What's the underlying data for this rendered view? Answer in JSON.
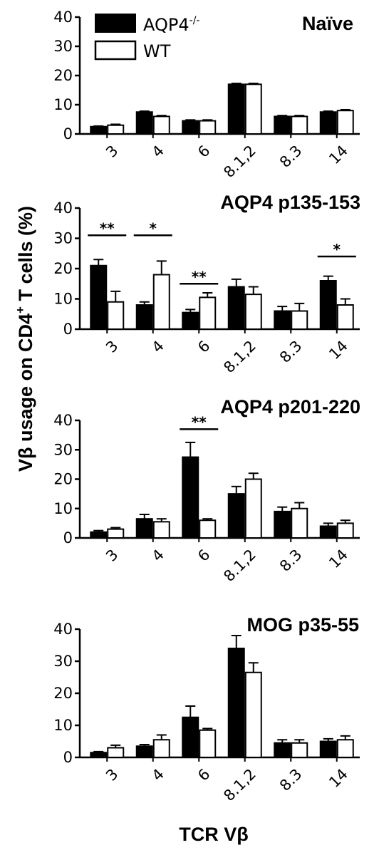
{
  "chart_data": {
    "type": "bar",
    "ylabel": "Vβ usage on CD4",
    "ylabel_sup": "+",
    "ylabel_tail": " T cells (%)",
    "xlabel": "TCR Vβ",
    "legend": {
      "placement": "top-left",
      "entries": [
        {
          "label": "AQP4",
          "sup": "-/-",
          "fill": "#000000"
        },
        {
          "label": "WT",
          "sup": "",
          "fill": "#ffffff"
        }
      ]
    },
    "series_colors": {
      "AQP4-/-": "#000000",
      "WT": "#ffffff"
    },
    "panels": [
      {
        "title": "Naïve",
        "categories": [
          "3",
          "4",
          "6",
          "8.1,2",
          "8.3",
          "14"
        ],
        "ylim": [
          0,
          40
        ],
        "yticks": [
          "0",
          "10",
          "20",
          "30",
          "40"
        ],
        "series": [
          {
            "name": "AQP4-/-",
            "values": [
              2.5,
              7.5,
              4.5,
              17,
              6,
              7.5
            ],
            "errors": [
              0.2,
              0.3,
              0.3,
              0.3,
              0.3,
              0.3
            ]
          },
          {
            "name": "WT",
            "values": [
              3,
              6,
              4.5,
              17,
              6,
              8
            ],
            "errors": [
              0.3,
              0.3,
              0.3,
              0.3,
              0.3,
              0.3
            ]
          }
        ],
        "significance": []
      },
      {
        "title": "AQP4 p135-153",
        "categories": [
          "3",
          "4",
          "6",
          "8.1,2",
          "8.3",
          "14"
        ],
        "ylim": [
          0,
          40
        ],
        "yticks": [
          "0",
          "10",
          "20",
          "30",
          "40"
        ],
        "series": [
          {
            "name": "AQP4-/-",
            "values": [
              21,
              8,
              5.5,
              14,
              6,
              16
            ],
            "errors": [
              2,
              1,
              1,
              2.5,
              1.5,
              1.5
            ]
          },
          {
            "name": "WT",
            "values": [
              9,
              18,
              10.5,
              11.5,
              6,
              8
            ],
            "errors": [
              3.5,
              4.5,
              1.5,
              2.5,
              2.5,
              2
            ]
          }
        ],
        "significance": [
          {
            "index": 0,
            "label": "**",
            "y": 31
          },
          {
            "index": 1,
            "label": "*",
            "y": 31
          },
          {
            "index": 2,
            "label": "**",
            "y": 15
          },
          {
            "index": 5,
            "label": "*",
            "y": 24
          }
        ]
      },
      {
        "title": "AQP4 p201-220",
        "categories": [
          "3",
          "4",
          "6",
          "8.1,2",
          "8.3",
          "14"
        ],
        "ylim": [
          0,
          40
        ],
        "yticks": [
          "0",
          "10",
          "20",
          "30",
          "40"
        ],
        "series": [
          {
            "name": "AQP4-/-",
            "values": [
              2,
              6.5,
              27.5,
              15,
              9,
              4
            ],
            "errors": [
              0.5,
              1.5,
              5,
              2.5,
              1.5,
              1
            ]
          },
          {
            "name": "WT",
            "values": [
              3,
              5.5,
              6,
              20,
              10,
              5
            ],
            "errors": [
              0.5,
              1,
              0.5,
              2,
              2,
              1
            ]
          }
        ],
        "significance": [
          {
            "index": 2,
            "label": "**",
            "y": 37
          }
        ]
      },
      {
        "title": "MOG p35-55",
        "categories": [
          "3",
          "4",
          "6",
          "8.1,2",
          "8.3",
          "14"
        ],
        "ylim": [
          0,
          40
        ],
        "yticks": [
          "0",
          "10",
          "20",
          "30",
          "40"
        ],
        "series": [
          {
            "name": "AQP4-/-",
            "values": [
              1.5,
              3.5,
              12.5,
              34,
              4.5,
              5
            ],
            "errors": [
              0.3,
              0.5,
              3.5,
              4,
              1,
              0.8
            ]
          },
          {
            "name": "WT",
            "values": [
              3,
              5.5,
              8.5,
              26.5,
              4.5,
              5.5
            ],
            "errors": [
              0.8,
              1.5,
              0.5,
              3,
              1,
              1.2
            ]
          }
        ],
        "significance": []
      }
    ]
  }
}
